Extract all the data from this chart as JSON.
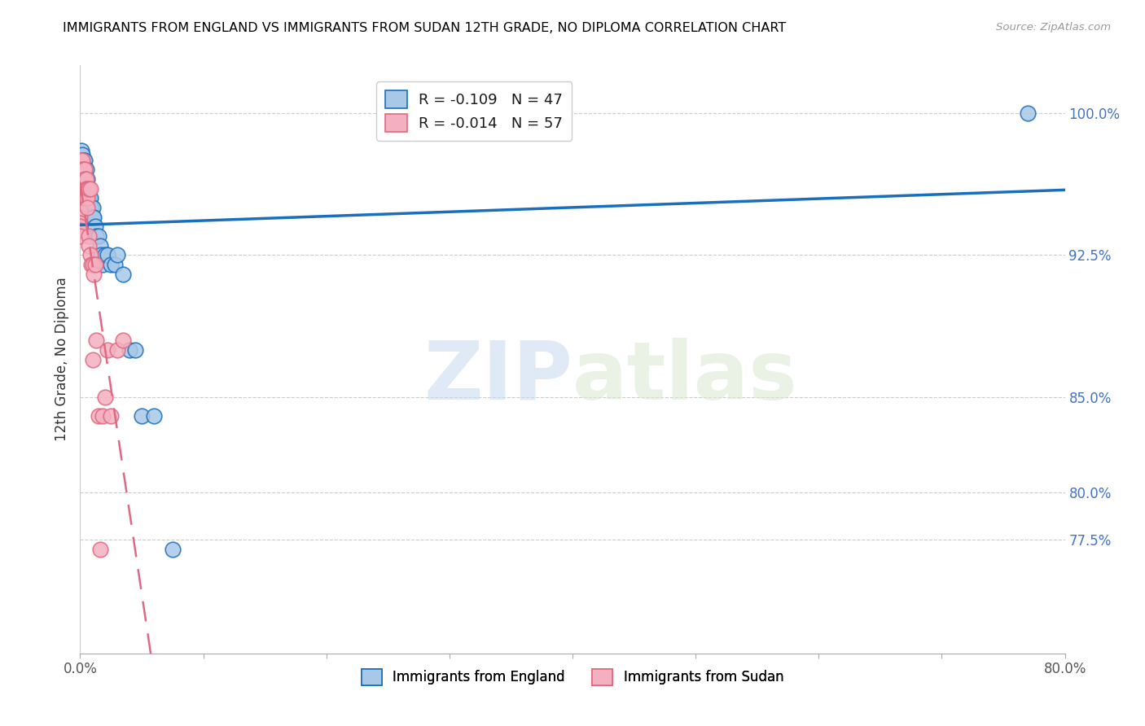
{
  "title": "IMMIGRANTS FROM ENGLAND VS IMMIGRANTS FROM SUDAN 12TH GRADE, NO DIPLOMA CORRELATION CHART",
  "source": "Source: ZipAtlas.com",
  "ylabel": "12th Grade, No Diploma",
  "xmin": 0.0,
  "xmax": 0.8,
  "ymin": 0.715,
  "ymax": 1.025,
  "legend_england_r": "-0.109",
  "legend_england_n": "47",
  "legend_sudan_r": "-0.014",
  "legend_sudan_n": "57",
  "color_england": "#a8c8e8",
  "color_england_line": "#1a6fbd",
  "color_sudan": "#f4b0c0",
  "color_sudan_line": "#e06880",
  "watermark_zip": "ZIP",
  "watermark_atlas": "atlas",
  "england_x": [
    0.0,
    0.0,
    0.0,
    0.001,
    0.001,
    0.002,
    0.002,
    0.002,
    0.003,
    0.003,
    0.003,
    0.004,
    0.004,
    0.004,
    0.005,
    0.005,
    0.005,
    0.006,
    0.006,
    0.006,
    0.007,
    0.007,
    0.008,
    0.008,
    0.009,
    0.009,
    0.01,
    0.01,
    0.011,
    0.012,
    0.013,
    0.015,
    0.016,
    0.017,
    0.018,
    0.02,
    0.022,
    0.025,
    0.028,
    0.03,
    0.035,
    0.04,
    0.045,
    0.05,
    0.06,
    0.075,
    0.77
  ],
  "england_y": [
    0.975,
    0.97,
    0.965,
    0.98,
    0.975,
    0.978,
    0.975,
    0.97,
    0.975,
    0.97,
    0.965,
    0.975,
    0.97,
    0.965,
    0.97,
    0.965,
    0.96,
    0.965,
    0.96,
    0.955,
    0.96,
    0.955,
    0.955,
    0.95,
    0.95,
    0.945,
    0.95,
    0.945,
    0.945,
    0.94,
    0.935,
    0.935,
    0.93,
    0.925,
    0.92,
    0.925,
    0.925,
    0.92,
    0.92,
    0.925,
    0.915,
    0.875,
    0.875,
    0.84,
    0.84,
    0.77,
    1.0
  ],
  "sudan_x": [
    0.0,
    0.0,
    0.0,
    0.0,
    0.0,
    0.0,
    0.0,
    0.0,
    0.0,
    0.0,
    0.0,
    0.0,
    0.0,
    0.0,
    0.0,
    0.0,
    0.0,
    0.001,
    0.001,
    0.001,
    0.001,
    0.002,
    0.002,
    0.002,
    0.002,
    0.003,
    0.003,
    0.003,
    0.004,
    0.004,
    0.004,
    0.004,
    0.005,
    0.005,
    0.005,
    0.006,
    0.006,
    0.006,
    0.007,
    0.007,
    0.007,
    0.008,
    0.008,
    0.009,
    0.01,
    0.01,
    0.011,
    0.012,
    0.013,
    0.015,
    0.016,
    0.018,
    0.02,
    0.022,
    0.025,
    0.03,
    0.035
  ],
  "sudan_y": [
    0.975,
    0.972,
    0.97,
    0.968,
    0.965,
    0.962,
    0.96,
    0.958,
    0.955,
    0.952,
    0.95,
    0.948,
    0.945,
    0.942,
    0.94,
    0.938,
    0.935,
    0.975,
    0.97,
    0.965,
    0.96,
    0.975,
    0.97,
    0.965,
    0.96,
    0.97,
    0.965,
    0.96,
    0.97,
    0.965,
    0.96,
    0.955,
    0.965,
    0.96,
    0.955,
    0.96,
    0.955,
    0.95,
    0.96,
    0.935,
    0.93,
    0.96,
    0.925,
    0.92,
    0.92,
    0.87,
    0.915,
    0.92,
    0.88,
    0.84,
    0.77,
    0.84,
    0.85,
    0.875,
    0.84,
    0.875,
    0.88
  ],
  "ytick_positions": [
    0.775,
    0.8,
    0.85,
    0.925,
    1.0
  ],
  "ytick_labels": [
    "77.5%",
    "80.0%",
    "85.0%",
    "92.5%",
    "100.0%"
  ],
  "xtick_positions": [
    0.0,
    0.1,
    0.2,
    0.3,
    0.4,
    0.5,
    0.6,
    0.7,
    0.8
  ],
  "xtick_labels": [
    "0.0%",
    "",
    "",
    "",
    "",
    "",
    "",
    "",
    "80.0%"
  ]
}
